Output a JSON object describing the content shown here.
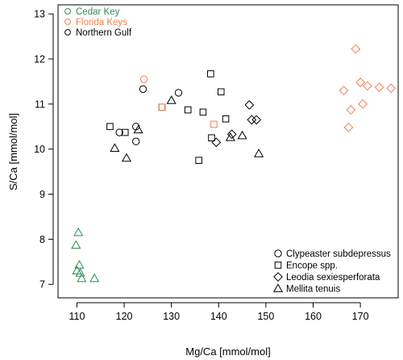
{
  "chart_data": {
    "type": "scatter",
    "xlabel": "Mg/Ca [mmol/mol]",
    "ylabel": "S/Ca [mmol/mol]",
    "xlim": [
      106,
      178
    ],
    "ylim": [
      6.7,
      13.2
    ],
    "x_ticks": [
      110,
      120,
      130,
      140,
      150,
      160,
      170
    ],
    "y_ticks": [
      7,
      8,
      9,
      10,
      11,
      12,
      13
    ],
    "grid": false,
    "colors": {
      "Cedar Key": "#2e8b57",
      "Florida Keys": "#f08050",
      "Northern Gulf": "#000000"
    },
    "legend_locations": {
      "position": "top-left",
      "entries": [
        {
          "label": "Cedar Key",
          "color": "#2e8b57"
        },
        {
          "label": "Florida Keys",
          "color": "#f08050"
        },
        {
          "label": "Northern Gulf",
          "color": "#000000"
        }
      ]
    },
    "legend_species": {
      "position": "bottom-right",
      "entries": [
        {
          "label": "Clypeaster subdepressus",
          "marker": "circle"
        },
        {
          "label": "Encope spp.",
          "marker": "square"
        },
        {
          "label": "Leodia sexiesperforata",
          "marker": "diamond"
        },
        {
          "label": "Mellita tenuis",
          "marker": "triangle"
        }
      ]
    },
    "series": [
      {
        "location": "Northern Gulf",
        "species": "Clypeaster subdepressus",
        "marker": "circle",
        "points": [
          [
            119,
            10.37
          ],
          [
            122.5,
            10.17
          ],
          [
            122.5,
            10.5
          ],
          [
            124,
            11.33
          ],
          [
            131.5,
            11.25
          ]
        ]
      },
      {
        "location": "Florida Keys",
        "species": "Clypeaster subdepressus",
        "marker": "circle",
        "points": [
          [
            124.2,
            11.55
          ]
        ]
      },
      {
        "location": "Northern Gulf",
        "species": "Encope spp.",
        "marker": "square",
        "points": [
          [
            117,
            10.5
          ],
          [
            120.2,
            10.37
          ],
          [
            128,
            10.93
          ],
          [
            133.5,
            10.87
          ],
          [
            135.8,
            9.75
          ],
          [
            136.7,
            10.82
          ],
          [
            138.3,
            11.67
          ],
          [
            140.5,
            11.27
          ],
          [
            141.5,
            10.67
          ],
          [
            138.5,
            10.25
          ]
        ]
      },
      {
        "location": "Florida Keys",
        "species": "Encope spp.",
        "marker": "square",
        "points": [
          [
            128,
            10.93
          ],
          [
            139,
            10.55
          ]
        ]
      },
      {
        "location": "Northern Gulf",
        "species": "Leodia sexiesperforata",
        "marker": "diamond",
        "points": [
          [
            139.5,
            10.15
          ],
          [
            142.8,
            10.33
          ],
          [
            146.5,
            10.98
          ],
          [
            147,
            10.65
          ],
          [
            148,
            10.65
          ]
        ]
      },
      {
        "location": "Florida Keys",
        "species": "Leodia sexiesperforata",
        "marker": "diamond",
        "points": [
          [
            166.5,
            11.3
          ],
          [
            167.5,
            10.48
          ],
          [
            168,
            10.87
          ],
          [
            169,
            12.22
          ],
          [
            170,
            11.48
          ],
          [
            170.5,
            11.0
          ],
          [
            171.5,
            11.4
          ],
          [
            174,
            11.37
          ],
          [
            176.5,
            11.35
          ]
        ]
      },
      {
        "location": "Northern Gulf",
        "species": "Mellita tenuis",
        "marker": "triangle",
        "points": [
          [
            118,
            10.02
          ],
          [
            120.5,
            9.8
          ],
          [
            123,
            10.43
          ],
          [
            130,
            11.08
          ],
          [
            142.5,
            10.26
          ],
          [
            145,
            10.3
          ],
          [
            148.5,
            9.9
          ]
        ]
      },
      {
        "location": "Cedar Key",
        "species": "Mellita tenuis",
        "marker": "triangle",
        "points": [
          [
            109.8,
            7.87
          ],
          [
            110,
            7.3
          ],
          [
            110.3,
            8.15
          ],
          [
            110.5,
            7.43
          ],
          [
            111,
            7.13
          ],
          [
            113.7,
            7.13
          ],
          [
            110.7,
            7.25
          ]
        ]
      }
    ]
  }
}
